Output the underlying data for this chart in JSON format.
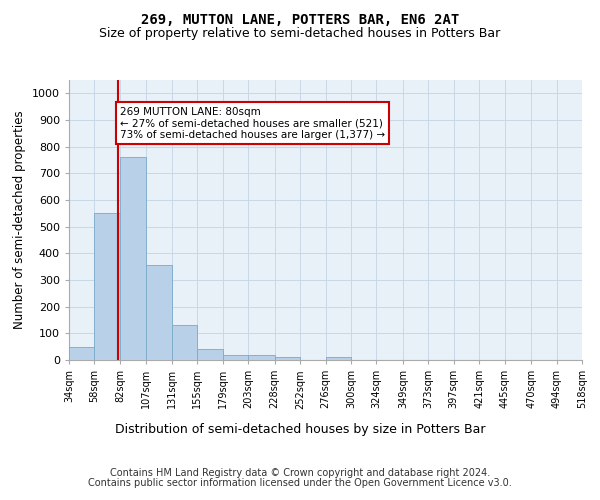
{
  "title": "269, MUTTON LANE, POTTERS BAR, EN6 2AT",
  "subtitle": "Size of property relative to semi-detached houses in Potters Bar",
  "xlabel": "Distribution of semi-detached houses by size in Potters Bar",
  "ylabel": "Number of semi-detached properties",
  "bar_color": "#b8d0e8",
  "bar_edge_color": "#7aaac8",
  "vline_color": "#cc0000",
  "vline_x": 80,
  "annotation_text": "269 MUTTON LANE: 80sqm\n← 27% of semi-detached houses are smaller (521)\n73% of semi-detached houses are larger (1,377) →",
  "annotation_box_color": "#cc0000",
  "grid_color": "#c8d8e8",
  "background_color": "#e8f0f8",
  "ylim": [
    0,
    1050
  ],
  "yticks": [
    0,
    100,
    200,
    300,
    400,
    500,
    600,
    700,
    800,
    900,
    1000
  ],
  "bin_edges": [
    34,
    58,
    82,
    107,
    131,
    155,
    179,
    203,
    228,
    252,
    276,
    300,
    324,
    349,
    373,
    397,
    421,
    445,
    470,
    494,
    518
  ],
  "bin_labels": [
    "34sqm",
    "58sqm",
    "82sqm",
    "107sqm",
    "131sqm",
    "155sqm",
    "179sqm",
    "203sqm",
    "228sqm",
    "252sqm",
    "276sqm",
    "300sqm",
    "324sqm",
    "349sqm",
    "373sqm",
    "397sqm",
    "421sqm",
    "445sqm",
    "470sqm",
    "494sqm",
    "518sqm"
  ],
  "bar_heights": [
    50,
    553,
    760,
    358,
    130,
    40,
    18,
    18,
    10,
    0,
    12,
    0,
    0,
    0,
    0,
    0,
    0,
    0,
    0,
    0
  ],
  "footer_line1": "Contains HM Land Registry data © Crown copyright and database right 2024.",
  "footer_line2": "Contains public sector information licensed under the Open Government Licence v3.0.",
  "title_fontsize": 10,
  "subtitle_fontsize": 9,
  "footer_fontsize": 7,
  "xlabel_fontsize": 9,
  "ylabel_fontsize": 8.5,
  "tick_fontsize": 7,
  "ytick_fontsize": 8
}
